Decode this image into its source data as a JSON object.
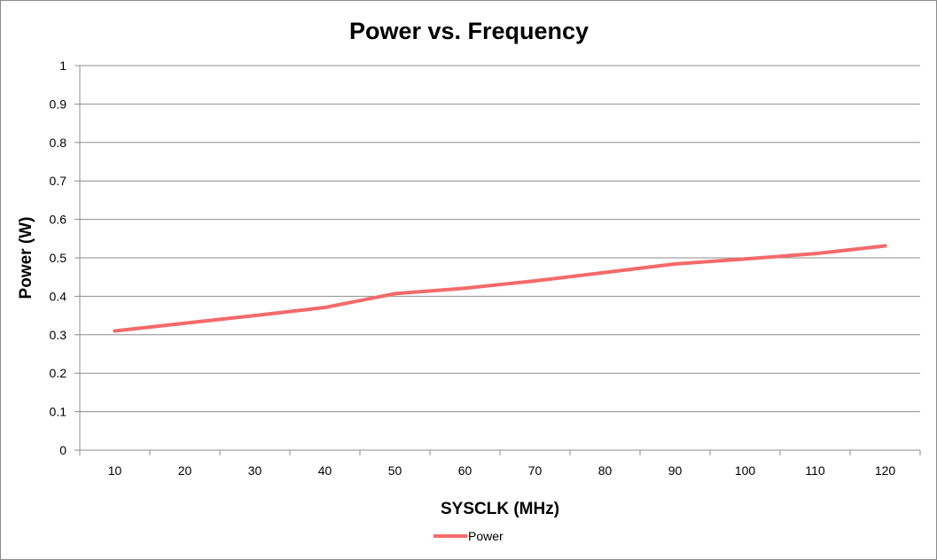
{
  "chart_data": {
    "type": "line",
    "title": "Power vs. Frequency",
    "xlabel": "SYSCLK (MHz)",
    "ylabel": "Power (W)",
    "categories": [
      "10",
      "20",
      "30",
      "40",
      "50",
      "60",
      "70",
      "80",
      "90",
      "100",
      "110",
      "120"
    ],
    "ylim": [
      0,
      1
    ],
    "yticks": [
      "0",
      "0.1",
      "0.2",
      "0.3",
      "0.4",
      "0.5",
      "0.6",
      "0.7",
      "0.8",
      "0.9",
      "1"
    ],
    "grid": true,
    "legend_position": "bottom",
    "series": [
      {
        "name": "Power",
        "color": "#f46a6a",
        "values": [
          0.31,
          0.33,
          0.35,
          0.371,
          0.407,
          0.421,
          0.44,
          0.462,
          0.484,
          0.497,
          0.511,
          0.531
        ]
      }
    ],
    "colors": {
      "grid": "#8c8c8c",
      "axis": "#8c8c8c",
      "border": "#8c8c8c"
    }
  }
}
